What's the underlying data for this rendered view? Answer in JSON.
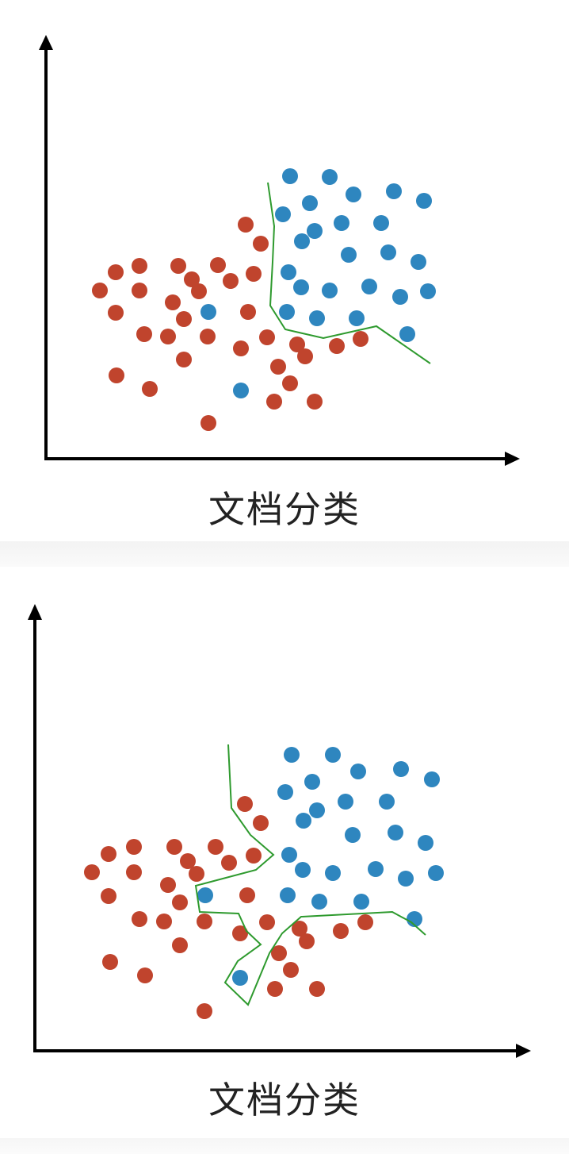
{
  "colors": {
    "red": "#c0442d",
    "blue": "#2e86bf",
    "boundary": "#2e9a2e",
    "axis": "#000000"
  },
  "panels": [
    {
      "caption": "文档分类",
      "red": [
        [
          126,
          366
        ],
        [
          146,
          343
        ],
        [
          146,
          394
        ],
        [
          176,
          335
        ],
        [
          176,
          366
        ],
        [
          182,
          421
        ],
        [
          147,
          473
        ],
        [
          189,
          490
        ],
        [
          212,
          424
        ],
        [
          218,
          381
        ],
        [
          225,
          335
        ],
        [
          232,
          402
        ],
        [
          232,
          453
        ],
        [
          242,
          352
        ],
        [
          251,
          367
        ],
        [
          262,
          424
        ],
        [
          263,
          533
        ],
        [
          275,
          334
        ],
        [
          291,
          354
        ],
        [
          310,
          283
        ],
        [
          304,
          439
        ],
        [
          313,
          393
        ],
        [
          320,
          345
        ],
        [
          329,
          307
        ],
        [
          337,
          425
        ],
        [
          346,
          506
        ],
        [
          351,
          462
        ],
        [
          366,
          483
        ],
        [
          375,
          434
        ],
        [
          385,
          449
        ],
        [
          397,
          506
        ],
        [
          425,
          436
        ],
        [
          455,
          427
        ]
      ],
      "blue": [
        [
          366,
          222
        ],
        [
          416,
          223
        ],
        [
          446,
          245
        ],
        [
          497,
          241
        ],
        [
          535,
          253
        ],
        [
          357,
          270
        ],
        [
          391,
          256
        ],
        [
          431,
          281
        ],
        [
          481,
          281
        ],
        [
          397,
          291
        ],
        [
          381,
          304
        ],
        [
          440,
          321
        ],
        [
          490,
          318
        ],
        [
          528,
          330
        ],
        [
          364,
          343
        ],
        [
          380,
          362
        ],
        [
          416,
          366
        ],
        [
          466,
          361
        ],
        [
          505,
          374
        ],
        [
          540,
          367
        ],
        [
          263,
          393
        ],
        [
          362,
          393
        ],
        [
          400,
          401
        ],
        [
          450,
          401
        ],
        [
          514,
          421
        ],
        [
          304,
          492
        ]
      ],
      "boundary": [
        [
          338,
          230
        ],
        [
          346,
          285
        ],
        [
          344,
          330
        ],
        [
          341,
          385
        ],
        [
          360,
          415
        ],
        [
          408,
          426
        ],
        [
          475,
          411
        ],
        [
          543,
          458
        ]
      ]
    },
    {
      "caption": "文档分类",
      "red": [
        [
          116,
          1099
        ],
        [
          137,
          1076
        ],
        [
          137,
          1129
        ],
        [
          169,
          1067
        ],
        [
          169,
          1099
        ],
        [
          176,
          1158
        ],
        [
          139,
          1212
        ],
        [
          183,
          1229
        ],
        [
          207,
          1161
        ],
        [
          212,
          1115
        ],
        [
          220,
          1067
        ],
        [
          227,
          1137
        ],
        [
          227,
          1191
        ],
        [
          237,
          1085
        ],
        [
          248,
          1101
        ],
        [
          258,
          1161
        ],
        [
          258,
          1274
        ],
        [
          272,
          1067
        ],
        [
          289,
          1087
        ],
        [
          309,
          1013
        ],
        [
          303,
          1176
        ],
        [
          312,
          1128
        ],
        [
          320,
          1078
        ],
        [
          329,
          1037
        ],
        [
          337,
          1162
        ],
        [
          347,
          1246
        ],
        [
          352,
          1201
        ],
        [
          367,
          1222
        ],
        [
          378,
          1170
        ],
        [
          387,
          1186
        ],
        [
          400,
          1246
        ],
        [
          430,
          1173
        ],
        [
          461,
          1162
        ]
      ],
      "blue": [
        [
          368,
          951
        ],
        [
          420,
          951
        ],
        [
          452,
          972
        ],
        [
          506,
          969
        ],
        [
          545,
          982
        ],
        [
          360,
          998
        ],
        [
          394,
          985
        ],
        [
          436,
          1010
        ],
        [
          488,
          1010
        ],
        [
          400,
          1021
        ],
        [
          383,
          1034
        ],
        [
          445,
          1052
        ],
        [
          499,
          1049
        ],
        [
          537,
          1062
        ],
        [
          365,
          1077
        ],
        [
          382,
          1096
        ],
        [
          420,
          1100
        ],
        [
          474,
          1095
        ],
        [
          512,
          1107
        ],
        [
          550,
          1100
        ],
        [
          259,
          1128
        ],
        [
          363,
          1128
        ],
        [
          403,
          1136
        ],
        [
          456,
          1136
        ],
        [
          523,
          1158
        ],
        [
          303,
          1232
        ]
      ]
    }
  ]
}
